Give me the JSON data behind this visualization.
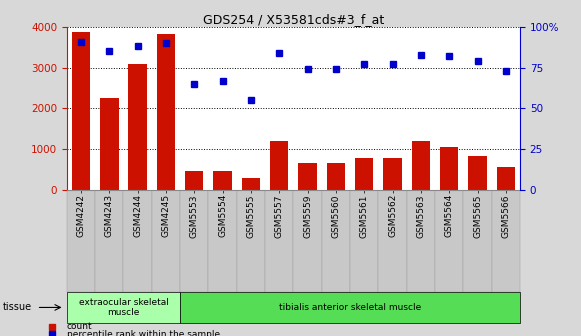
{
  "title": "GDS254 / X53581cds#3_f_at",
  "categories": [
    "GSM4242",
    "GSM4243",
    "GSM4244",
    "GSM4245",
    "GSM5553",
    "GSM5554",
    "GSM5555",
    "GSM5557",
    "GSM5559",
    "GSM5560",
    "GSM5561",
    "GSM5562",
    "GSM5563",
    "GSM5564",
    "GSM5565",
    "GSM5566"
  ],
  "counts": [
    3870,
    2250,
    3100,
    3820,
    470,
    465,
    290,
    1200,
    670,
    660,
    790,
    790,
    1200,
    1060,
    830,
    570
  ],
  "percentiles": [
    91,
    85,
    88,
    90,
    65,
    67,
    55,
    84,
    74,
    74,
    77,
    77,
    83,
    82,
    79,
    73
  ],
  "bar_color": "#cc1100",
  "dot_color": "#0000cc",
  "ylim_left": [
    0,
    4000
  ],
  "ylim_right": [
    0,
    100
  ],
  "yticks_left": [
    0,
    1000,
    2000,
    3000,
    4000
  ],
  "yticks_right": [
    0,
    25,
    50,
    75,
    100
  ],
  "ylabel_left_color": "#cc1100",
  "ylabel_right_color": "#0000cc",
  "tissue_groups": [
    {
      "label": "extraocular skeletal\nmuscle",
      "n": 4,
      "color": "#aaffaa"
    },
    {
      "label": "tibialis anterior skeletal muscle",
      "n": 12,
      "color": "#55dd55"
    }
  ],
  "tissue_label": "tissue",
  "legend_items": [
    {
      "label": "count",
      "color": "#cc1100"
    },
    {
      "label": "percentile rank within the sample",
      "color": "#0000cc"
    }
  ],
  "bg_color": "#d8d8d8",
  "plot_bg_color": "#ffffff",
  "xtick_bg": "#c8c8c8"
}
